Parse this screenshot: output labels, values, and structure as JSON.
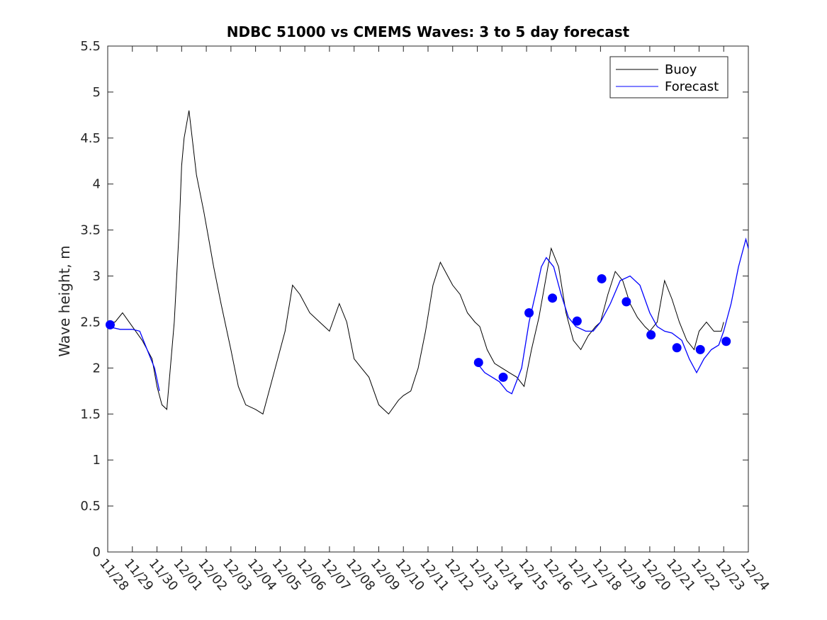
{
  "chart_data": {
    "type": "line",
    "title": "NDBC 51000 vs CMEMS Waves: 3 to 5 day forecast",
    "xlabel": "",
    "ylabel": "Wave height, m",
    "x_ticks": [
      "11/28",
      "11/29",
      "11/30",
      "12/01",
      "12/02",
      "12/03",
      "12/04",
      "12/05",
      "12/06",
      "12/07",
      "12/08",
      "12/09",
      "12/10",
      "12/11",
      "12/12",
      "12/13",
      "12/14",
      "12/15",
      "12/16",
      "12/17",
      "12/18",
      "12/19",
      "12/20",
      "12/21",
      "12/22",
      "12/23",
      "12/24"
    ],
    "y_ticks": [
      "0",
      "0.5",
      "1",
      "1.5",
      "2",
      "2.5",
      "3",
      "3.5",
      "4",
      "4.5",
      "5",
      "5.5"
    ],
    "xlim_days": [
      0,
      26
    ],
    "ylim": [
      0,
      5.5
    ],
    "grid": false,
    "legend_position": "top-right",
    "colors": {
      "buoy": "#000000",
      "forecast": "#0000ff"
    },
    "series": [
      {
        "name": "Buoy",
        "x_day": [
          0,
          0.3,
          0.6,
          1,
          1.4,
          1.8,
          2,
          2.2,
          2.4,
          2.7,
          2.9,
          3,
          3.1,
          3.3,
          3.6,
          3.9,
          4.1,
          4.3,
          4.6,
          5,
          5.3,
          5.6,
          6,
          6.3,
          6.6,
          6.9,
          7.2,
          7.5,
          7.8,
          8.2,
          8.6,
          9,
          9.4,
          9.7,
          10,
          10.3,
          10.6,
          11,
          11.4,
          11.8,
          12,
          12.3,
          12.6,
          12.9,
          13.2,
          13.5,
          13.8,
          14,
          14.3,
          14.6,
          14.9,
          15.1,
          15.4,
          15.7,
          16,
          16.3,
          16.6,
          16.9,
          17.2,
          17.5,
          17.8,
          18,
          18.3,
          18.6,
          18.9,
          19.2,
          19.5,
          19.8,
          20,
          20.3,
          20.6,
          20.9,
          21.2,
          21.5,
          21.8,
          22,
          22.3,
          22.6,
          22.9,
          23.2,
          23.5,
          23.8,
          24,
          24.3,
          24.6,
          24.9,
          25
        ],
        "values": [
          2.5,
          2.5,
          2.6,
          2.45,
          2.3,
          2.1,
          1.8,
          1.6,
          1.55,
          2.5,
          3.5,
          4.2,
          4.5,
          4.8,
          4.1,
          3.7,
          3.4,
          3.1,
          2.7,
          2.2,
          1.8,
          1.6,
          1.55,
          1.5,
          1.8,
          2.1,
          2.4,
          2.9,
          2.8,
          2.6,
          2.5,
          2.4,
          2.7,
          2.5,
          2.1,
          2.0,
          1.9,
          1.6,
          1.5,
          1.65,
          1.7,
          1.75,
          2.0,
          2.4,
          2.9,
          3.15,
          3.0,
          2.9,
          2.8,
          2.6,
          2.5,
          2.45,
          2.2,
          2.05,
          2.0,
          1.95,
          1.9,
          1.8,
          2.2,
          2.55,
          3.0,
          3.3,
          3.1,
          2.6,
          2.3,
          2.2,
          2.35,
          2.45,
          2.5,
          2.8,
          3.05,
          2.95,
          2.7,
          2.55,
          2.45,
          2.4,
          2.5,
          2.95,
          2.75,
          2.5,
          2.3,
          2.2,
          2.4,
          2.5,
          2.4,
          2.4,
          2.5
        ]
      },
      {
        "name": "Forecast",
        "x_day": [
          0,
          0.5,
          1,
          1.3,
          1.6,
          1.9,
          2.1,
          15,
          15.3,
          15.6,
          15.9,
          16.2,
          16.4,
          16.8,
          17.1,
          17.4,
          17.6,
          17.8,
          18.1,
          18.4,
          18.7,
          19,
          19.4,
          19.7,
          20,
          20.4,
          20.8,
          21.2,
          21.6,
          22,
          22.3,
          22.6,
          22.9,
          23.3,
          23.6,
          23.9,
          24.2,
          24.5,
          24.8,
          25,
          25.3,
          25.6,
          25.9,
          26
        ],
        "values": [
          2.45,
          2.42,
          2.42,
          2.4,
          2.2,
          2.0,
          1.75,
          2.05,
          1.95,
          1.9,
          1.85,
          1.75,
          1.72,
          2.0,
          2.5,
          2.85,
          3.1,
          3.2,
          3.1,
          2.8,
          2.55,
          2.45,
          2.4,
          2.4,
          2.5,
          2.7,
          2.95,
          3.0,
          2.9,
          2.6,
          2.45,
          2.4,
          2.38,
          2.3,
          2.1,
          1.95,
          2.1,
          2.2,
          2.25,
          2.4,
          2.7,
          3.1,
          3.4,
          3.3
        ]
      }
    ],
    "markers": {
      "x_day": [
        0.1,
        15.05,
        16.05,
        17.1,
        18.05,
        19.05,
        20.05,
        21.05,
        22.05,
        23.1,
        24.05,
        25.1
      ],
      "values": [
        2.47,
        2.06,
        1.9,
        2.6,
        2.76,
        2.51,
        2.97,
        2.72,
        2.36,
        2.22,
        2.2,
        2.29
      ]
    },
    "legend": [
      "Buoy",
      "Forecast"
    ]
  }
}
